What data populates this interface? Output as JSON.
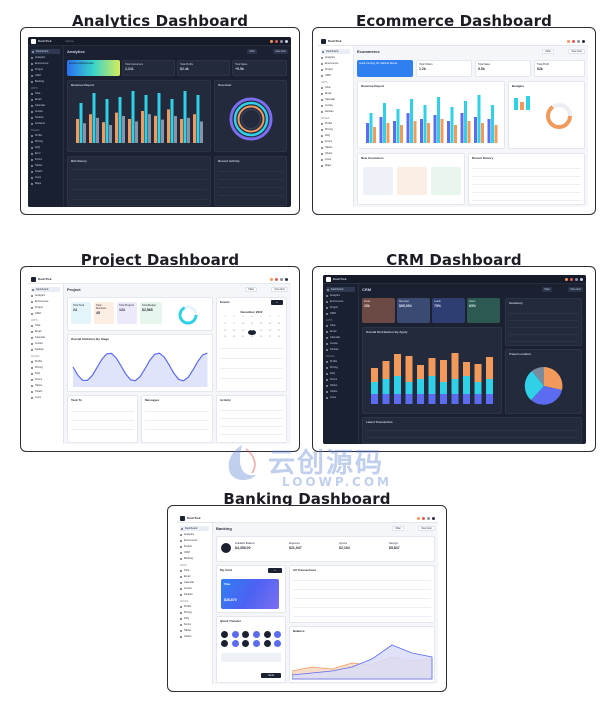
{
  "sections": [
    {
      "title": "Analytics Dashboard",
      "app_brand": "DashTrek",
      "breadcrumb": "Home",
      "page_title": "Analytics",
      "stats": [
        {
          "label": "Invoice and Payments",
          "value": ""
        },
        {
          "label": "Total Customers",
          "value": "2,341"
        },
        {
          "label": "Total Profits",
          "value": "$2.4k"
        },
        {
          "label": "Total Sales",
          "value": "+5.5k"
        }
      ],
      "panels": [
        "Revenue Report",
        "Overview",
        "Bill History",
        "Recent Activity"
      ]
    },
    {
      "title": "Ecommerce Dashboard",
      "app_brand": "DashTrek",
      "page_title": "Ecommerce",
      "stats": [
        {
          "label": "Good morning, Mr. Sabrina Nusrat",
          "value": ""
        },
        {
          "label": "Total Orders",
          "value": "1.2k"
        },
        {
          "label": "Total Sales",
          "value": "5.5k"
        },
        {
          "label": "Total Profit",
          "value": "$2k"
        }
      ],
      "panels": [
        "Revenue Report",
        "Budgets",
        "New Customers",
        "Recent History"
      ]
    },
    {
      "title": "Project Dashboard",
      "app_brand": "DashTrek",
      "page_title": "Project",
      "stats": [
        {
          "label": "Total Task",
          "value": "24"
        },
        {
          "label": "Total Members",
          "value": "45"
        },
        {
          "label": "Total Projects",
          "value": "124"
        },
        {
          "label": "Total Budget",
          "value": "$2,565"
        }
      ],
      "calendar_label": "December 2022",
      "panels": [
        "Overall Statistics By Stage",
        "Events",
        "Task To",
        "Messages",
        "Activity"
      ]
    },
    {
      "title": "CRM Dashboard",
      "app_brand": "DashTrek",
      "page_title": "CRM",
      "stats": [
        {
          "label": "Deals",
          "value": "25k"
        },
        {
          "label": "Revenue",
          "value": "$65,954"
        },
        {
          "label": "Leads",
          "value": "75%"
        },
        {
          "label": "Users",
          "value": "63%"
        }
      ],
      "panels": [
        "Overall Distribution By Apply",
        "Summary",
        "Travel Location",
        "Latest Transaction"
      ]
    },
    {
      "title": "Banking Dashboard",
      "app_brand": "DashTrek",
      "page_title": "Banking",
      "stats": [
        {
          "label": "Available Balance",
          "value": "$4,358.00"
        },
        {
          "label": "Expenses",
          "value": "$21,947"
        },
        {
          "label": "Income",
          "value": "$2,154"
        },
        {
          "label": "Savings",
          "value": "$5,847"
        }
      ],
      "card_label": "$28,870",
      "panels": [
        "My Card",
        "All Transactions",
        "Quick Transfer",
        "Balance"
      ]
    }
  ],
  "watermark": {
    "text": "云创源码",
    "sub": "LOOWP.COM"
  },
  "colors": {
    "dark_bg": "#1b2131",
    "bar_cyan": "#30d0e6",
    "bar_orange": "#f2995c",
    "bar_blue": "#5b6cf0",
    "ring_purple": "#7c6df2"
  }
}
